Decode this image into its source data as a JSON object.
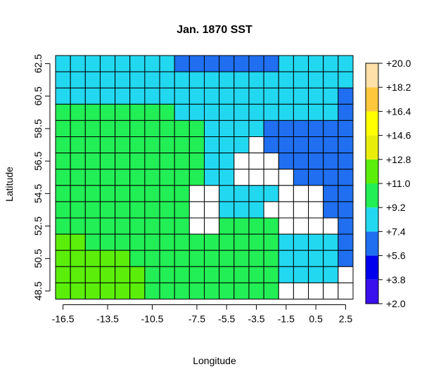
{
  "chart_data": {
    "type": "heatmap",
    "title": "Jan. 1870 SST",
    "xlabel": "Longitude",
    "ylabel": "Latitude",
    "x_ticks": [
      "-16.5",
      "-13.5",
      "-10.5",
      "-7.5",
      "-5.5",
      "-3.5",
      "-1.5",
      "0.5",
      "2.5"
    ],
    "y_ticks": [
      "48.5",
      "50.5",
      "52.5",
      "54.5",
      "56.5",
      "58.5",
      "60.5",
      "62.5"
    ],
    "x_centers": [
      -16.5,
      -15.5,
      -14.5,
      -13.5,
      -12.5,
      -11.5,
      -10.5,
      -9.5,
      -8.5,
      -7.5,
      -6.5,
      -5.5,
      -4.5,
      -3.5,
      -2.5,
      -1.5,
      -0.5,
      0.5,
      1.5,
      2.5
    ],
    "y_centers": [
      62.5,
      61.5,
      60.5,
      59.5,
      58.5,
      57.5,
      56.5,
      55.5,
      54.5,
      53.5,
      52.5,
      51.5,
      50.5,
      49.5,
      48.5
    ],
    "grid": true,
    "legend": {
      "position": "right",
      "labels": [
        "+2.0",
        "+3.8",
        "+5.6",
        "+7.4",
        "+9.2",
        "+11.0",
        "+12.8",
        "+14.6",
        "+16.4",
        "+18.2",
        "+20.0"
      ],
      "colors": [
        "#3b10ee",
        "#0000ee",
        "#1f6ff0",
        "#22d8f0",
        "#22ee55",
        "#5bee0a",
        "#e8ee0a",
        "#ffff00",
        "#ffc83c",
        "#ffe0a8"
      ]
    },
    "rows": [
      "55555555222222255555",
      "55555555555555555555",
      "55555555555555555552",
      "44444444555555555552",
      "44444444445555222222",
      "44444444445550222222",
      "44444444445500022222",
      "44444444445500002222",
      "44444444400555500022",
      "44444444400555000022",
      "44444444400444400002",
      "66444444444444455552",
      "66666444444444455552",
      "66666644444444455550",
      "66666644444444400000"
    ],
    "palette": {
      "0": "#ffffff",
      "2": "#1f6ff0",
      "4": "#22ee55",
      "5": "#22d8f0",
      "6": "#5bee0a"
    }
  }
}
